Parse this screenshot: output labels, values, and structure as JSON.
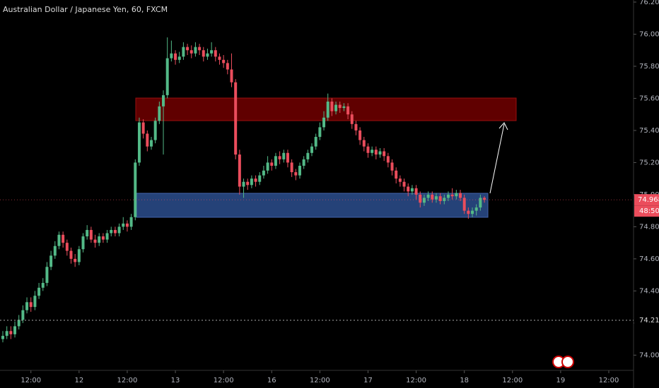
{
  "chart_data": {
    "type": "candlestick",
    "title": "Australian Dollar / Japanese Yen, 60, FXCM",
    "categories": [
      null,
      null,
      null,
      null,
      null,
      null,
      null,
      "12:00",
      null,
      null,
      null,
      null,
      null,
      null,
      null,
      null,
      null,
      null,
      null,
      "12",
      null,
      null,
      null,
      null,
      null,
      null,
      null,
      null,
      null,
      null,
      null,
      "12:00",
      null,
      null,
      null,
      null,
      null,
      null,
      null,
      null,
      null,
      null,
      null,
      "13",
      null,
      null,
      null,
      null,
      null,
      null,
      null,
      null,
      null,
      null,
      null,
      "12:00",
      null,
      null,
      null,
      null,
      null,
      null,
      null,
      null,
      null,
      null,
      null,
      "16",
      null,
      null,
      null,
      null,
      null,
      null,
      null,
      null,
      null,
      null,
      null,
      "12:00",
      null,
      null,
      null,
      null,
      null,
      null,
      null,
      null,
      null,
      null,
      null,
      "17",
      null,
      null,
      null,
      null,
      null,
      null,
      null,
      null,
      null,
      null,
      null,
      "12:00",
      null,
      null,
      null,
      null,
      null,
      null,
      null,
      null,
      null,
      null,
      null,
      "18",
      null,
      null,
      null,
      null,
      null,
      null,
      null,
      null,
      null,
      null,
      null,
      "12:00",
      null,
      null,
      null,
      null,
      null,
      null,
      null,
      null,
      null,
      null,
      null,
      "19",
      null,
      null,
      null,
      null,
      null,
      null,
      null,
      null,
      null,
      null,
      null,
      "12:00"
    ],
    "open": [
      74.1,
      74.12,
      74.15,
      74.13,
      74.18,
      74.22,
      74.28,
      74.33,
      74.3,
      74.37,
      74.42,
      74.45,
      74.55,
      74.62,
      74.68,
      74.75,
      74.7,
      74.65,
      74.6,
      74.58,
      74.66,
      74.74,
      74.78,
      74.72,
      74.7,
      74.74,
      74.72,
      74.76,
      74.78,
      74.76,
      74.8,
      74.82,
      74.8,
      74.86,
      75.2,
      75.45,
      75.38,
      75.3,
      75.34,
      75.46,
      75.55,
      75.62,
      75.85,
      75.88,
      75.84,
      75.86,
      75.92,
      75.9,
      75.88,
      75.92,
      75.9,
      75.86,
      75.88,
      75.9,
      75.86,
      75.84,
      75.82,
      75.78,
      75.7,
      75.25,
      75.05,
      75.08,
      75.06,
      75.1,
      75.08,
      75.12,
      75.15,
      75.2,
      75.18,
      75.24,
      75.22,
      75.26,
      75.2,
      75.14,
      75.12,
      75.18,
      75.22,
      75.26,
      75.3,
      75.36,
      75.42,
      75.48,
      75.58,
      75.52,
      75.56,
      75.54,
      75.55,
      75.5,
      75.44,
      75.4,
      75.34,
      75.3,
      75.26,
      75.28,
      75.25,
      75.27,
      75.24,
      75.2,
      75.15,
      75.1,
      75.08,
      75.05,
      75.02,
      75.04,
      75.0,
      74.95,
      74.98,
      75.0,
      74.97,
      74.99,
      74.96,
      74.98,
      75.0,
      74.99,
      75.01,
      74.98,
      74.9,
      74.88,
      74.9,
      74.92,
      74.98,
      null,
      null,
      null,
      null,
      null,
      null,
      null,
      null,
      null,
      null,
      null,
      null,
      null,
      null,
      null,
      null,
      null,
      null,
      null,
      null,
      null,
      null,
      null,
      null,
      null,
      null,
      null,
      null,
      null,
      null,
      null
    ],
    "high": [
      74.15,
      74.18,
      74.18,
      74.21,
      74.25,
      74.31,
      74.36,
      74.36,
      74.4,
      74.45,
      74.48,
      74.58,
      74.65,
      74.71,
      74.77,
      74.77,
      74.72,
      74.67,
      74.63,
      74.68,
      74.76,
      74.81,
      74.8,
      74.75,
      74.76,
      74.76,
      74.78,
      74.8,
      74.8,
      74.82,
      74.86,
      74.84,
      74.88,
      75.22,
      75.48,
      75.47,
      75.4,
      75.36,
      75.48,
      75.58,
      75.65,
      75.98,
      75.96,
      75.9,
      75.89,
      75.95,
      75.94,
      75.93,
      75.95,
      75.94,
      75.92,
      75.91,
      75.95,
      75.92,
      75.88,
      75.87,
      75.84,
      75.88,
      75.72,
      75.28,
      75.1,
      75.1,
      75.12,
      75.12,
      75.14,
      75.18,
      75.24,
      75.22,
      75.26,
      75.27,
      75.28,
      75.28,
      75.22,
      75.16,
      75.2,
      75.24,
      75.28,
      75.32,
      75.38,
      75.45,
      75.52,
      75.63,
      75.6,
      75.58,
      75.58,
      75.57,
      75.57,
      75.52,
      75.46,
      75.42,
      75.36,
      75.32,
      75.3,
      75.3,
      75.29,
      75.29,
      75.26,
      75.22,
      75.17,
      75.12,
      75.1,
      75.07,
      75.06,
      75.06,
      75.02,
      75.0,
      75.02,
      75.02,
      75.01,
      75.01,
      75.0,
      75.02,
      75.04,
      75.03,
      75.03,
      75.0,
      74.92,
      74.92,
      74.94,
      75.0,
      74.99,
      null,
      null,
      null,
      null,
      null,
      null,
      null,
      null,
      null,
      null,
      null,
      null,
      null,
      null,
      null,
      null,
      null,
      null,
      null,
      null,
      null,
      null,
      null,
      null,
      null,
      null,
      null,
      null,
      null,
      null,
      null
    ],
    "low": [
      74.08,
      74.1,
      74.1,
      74.11,
      74.16,
      74.2,
      74.26,
      74.27,
      74.28,
      74.35,
      74.4,
      74.43,
      74.53,
      74.6,
      74.66,
      74.67,
      74.62,
      74.57,
      74.55,
      74.56,
      74.64,
      74.72,
      74.7,
      74.67,
      74.68,
      74.7,
      74.7,
      74.74,
      74.74,
      74.74,
      74.78,
      74.77,
      74.78,
      74.84,
      75.18,
      75.35,
      75.27,
      75.28,
      75.32,
      75.44,
      75.25,
      75.6,
      75.83,
      75.81,
      75.82,
      75.84,
      75.87,
      75.85,
      75.86,
      75.87,
      75.83,
      75.84,
      75.86,
      75.83,
      75.81,
      75.79,
      75.75,
      75.67,
      75.22,
      75.0,
      74.98,
      75.03,
      75.04,
      75.05,
      75.06,
      75.1,
      75.13,
      75.15,
      75.16,
      75.19,
      75.2,
      75.17,
      75.11,
      75.09,
      75.1,
      75.16,
      75.2,
      75.24,
      75.28,
      75.34,
      75.4,
      75.46,
      75.49,
      75.5,
      75.51,
      75.52,
      75.47,
      75.41,
      75.37,
      75.31,
      75.27,
      75.23,
      75.24,
      75.22,
      75.23,
      75.21,
      75.17,
      75.12,
      75.07,
      75.05,
      75.02,
      74.99,
      75.0,
      74.97,
      74.92,
      74.93,
      74.96,
      74.95,
      74.95,
      74.94,
      74.94,
      74.96,
      74.97,
      74.97,
      74.96,
      74.88,
      74.85,
      74.86,
      74.87,
      74.9,
      74.95,
      null,
      null,
      null,
      null,
      null,
      null,
      null,
      null,
      null,
      null,
      null,
      null,
      null,
      null,
      null,
      null,
      null,
      null,
      null,
      null,
      null,
      null,
      null,
      null,
      null,
      null,
      null,
      null,
      null,
      null,
      null
    ],
    "close": [
      74.12,
      74.15,
      74.13,
      74.18,
      74.22,
      74.28,
      74.33,
      74.3,
      74.37,
      74.42,
      74.45,
      74.55,
      74.62,
      74.68,
      74.75,
      74.7,
      74.65,
      74.6,
      74.58,
      74.66,
      74.74,
      74.78,
      74.72,
      74.7,
      74.74,
      74.72,
      74.76,
      74.78,
      74.76,
      74.8,
      74.82,
      74.8,
      74.86,
      75.2,
      75.45,
      75.38,
      75.3,
      75.34,
      75.46,
      75.55,
      75.62,
      75.85,
      75.88,
      75.84,
      75.86,
      75.92,
      75.9,
      75.88,
      75.92,
      75.9,
      75.86,
      75.88,
      75.9,
      75.86,
      75.84,
      75.82,
      75.78,
      75.7,
      75.25,
      75.05,
      75.08,
      75.06,
      75.1,
      75.08,
      75.12,
      75.15,
      75.2,
      75.18,
      75.24,
      75.22,
      75.26,
      75.2,
      75.14,
      75.12,
      75.18,
      75.22,
      75.26,
      75.3,
      75.36,
      75.42,
      75.48,
      75.58,
      75.52,
      75.56,
      75.54,
      75.55,
      75.5,
      75.44,
      75.4,
      75.34,
      75.3,
      75.26,
      75.28,
      75.25,
      75.27,
      75.24,
      75.2,
      75.15,
      75.1,
      75.08,
      75.05,
      75.02,
      75.04,
      75.0,
      74.95,
      74.98,
      75.0,
      74.97,
      74.99,
      74.96,
      74.98,
      75.0,
      74.99,
      75.01,
      74.98,
      74.9,
      74.88,
      74.9,
      74.92,
      74.98,
      74.968,
      null,
      null,
      null,
      null,
      null,
      null,
      null,
      null,
      null,
      null,
      null,
      null,
      null,
      null,
      null,
      null,
      null,
      null,
      null,
      null,
      null,
      null,
      null,
      null,
      null,
      null,
      null,
      null,
      null,
      null,
      null
    ],
    "up_color": "#53b987",
    "down_color": "#eb4d5c",
    "ylim": [
      73.905,
      76.213
    ],
    "yticks": [
      {
        "value": 74.0,
        "label": "74.000"
      },
      {
        "value": 74.2,
        "label": "74.200"
      },
      {
        "value": 74.4,
        "label": "74.400"
      },
      {
        "value": 74.6,
        "label": "74.600"
      },
      {
        "value": 74.8,
        "label": "74.800"
      },
      {
        "value": 75.0,
        "label": "75.000"
      },
      {
        "value": 75.2,
        "label": "75.200"
      },
      {
        "value": 75.4,
        "label": "75.400"
      },
      {
        "value": 75.6,
        "label": "75.600"
      },
      {
        "value": 75.8,
        "label": "75.800"
      },
      {
        "value": 76.0,
        "label": "76.000"
      },
      {
        "value": 76.2,
        "label": "76.200"
      }
    ],
    "reference_line": 74.217,
    "last_price": 74.968,
    "countdown": "48:50",
    "grid": false
  }
}
